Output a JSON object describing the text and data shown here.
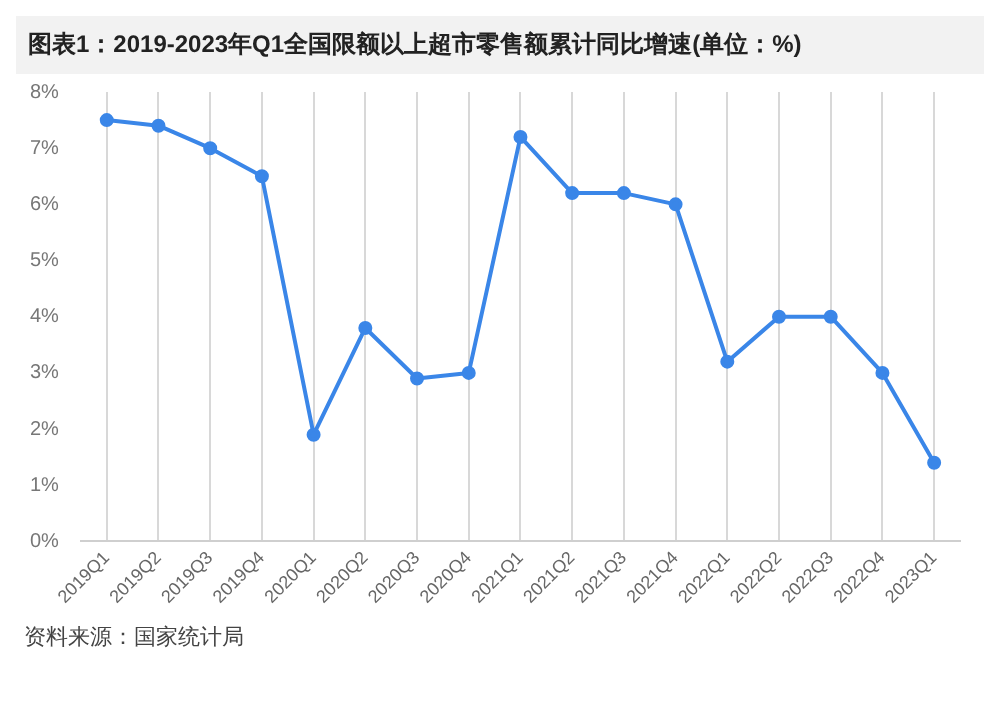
{
  "chart_data": {
    "type": "line",
    "title": "图表1：2019-2023年Q1全国限额以上超市零售额累计同比增速(单位：%)",
    "categories": [
      "2019Q1",
      "2019Q2",
      "2019Q3",
      "2019Q4",
      "2020Q1",
      "2020Q2",
      "2020Q3",
      "2020Q4",
      "2021Q1",
      "2021Q2",
      "2021Q3",
      "2021Q4",
      "2022Q1",
      "2022Q2",
      "2022Q3",
      "2022Q4",
      "2023Q1"
    ],
    "series": [
      {
        "color": "#3a86e8",
        "values": [
          7.5,
          7.4,
          7.0,
          6.5,
          1.9,
          3.8,
          2.9,
          3.0,
          7.2,
          6.2,
          6.2,
          6.0,
          3.2,
          4.0,
          4.0,
          3.0,
          1.4
        ]
      }
    ],
    "ylim": [
      0,
      8
    ],
    "yticks": [
      {
        "value": 0,
        "label": "0%"
      },
      {
        "value": 1,
        "label": "1%"
      },
      {
        "value": 2,
        "label": "2%"
      },
      {
        "value": 3,
        "label": "3%"
      },
      {
        "value": 4,
        "label": "4%"
      },
      {
        "value": 5,
        "label": "5%"
      },
      {
        "value": 6,
        "label": "6%"
      },
      {
        "value": 7,
        "label": "7%"
      },
      {
        "value": 8,
        "label": "8%"
      }
    ],
    "grid": "x",
    "marker": "circle",
    "line_style": "solid",
    "legend": false,
    "annotations": [
      "资料来源：国家统计局"
    ]
  }
}
